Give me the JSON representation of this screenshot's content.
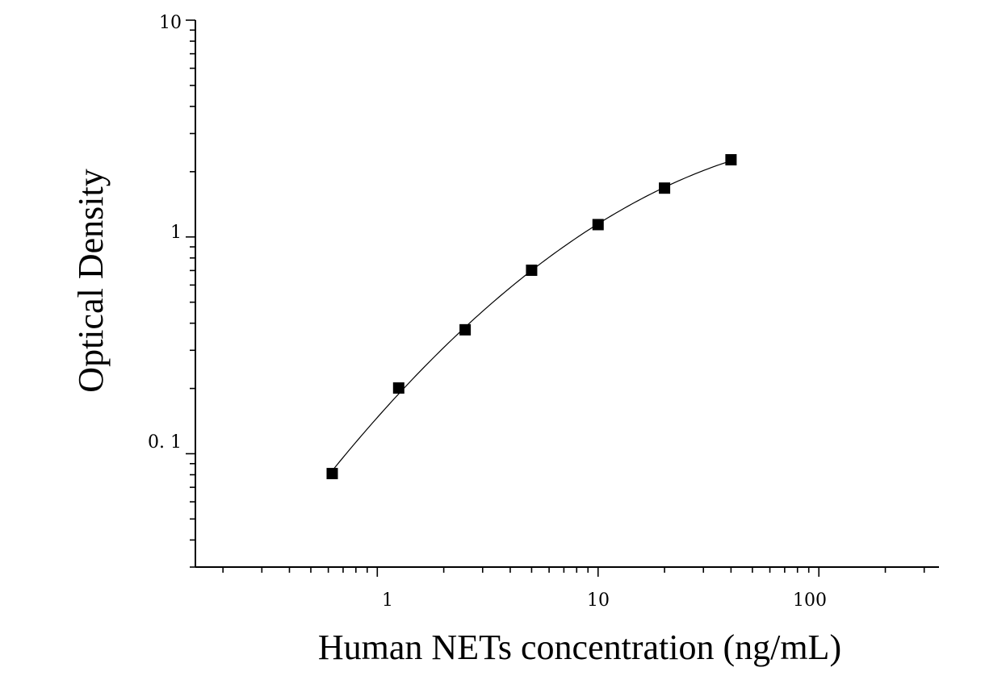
{
  "chart_data": {
    "type": "scatter",
    "xlabel": "Human NETs concentration (ng/mL)",
    "ylabel": "Optical Density",
    "x_scale": "log",
    "y_scale": "log",
    "xlim": [
      0.15,
      350
    ],
    "ylim": [
      0.03,
      10
    ],
    "x_tick_labels": [
      "1",
      "10",
      "100"
    ],
    "y_tick_labels": [
      "0. 1",
      "1",
      "10"
    ],
    "grid": false,
    "series": [
      {
        "x": [
          0.625,
          1.25,
          2.5,
          5,
          10,
          20,
          40
        ],
        "y": [
          0.081,
          0.201,
          0.373,
          0.702,
          1.14,
          1.68,
          2.27
        ],
        "marker": "square",
        "fit_line": true,
        "color": "#000000"
      }
    ]
  }
}
